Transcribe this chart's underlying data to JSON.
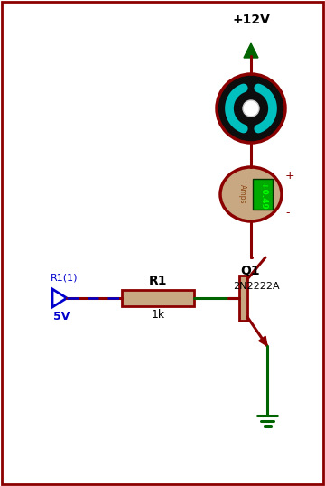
{
  "bg_color": "#ffffff",
  "border_color": "#8B0000",
  "wire_color_dark": "#8B0000",
  "wire_color_green": "#006400",
  "wire_color_blue": "#0000CD",
  "vcc_label": "+12V",
  "r1_label": "R1",
  "r1_value": "1k",
  "q1_label": "Q1",
  "q1_value": "2N2222A",
  "source_label": "R1(1)",
  "source_voltage": "5V",
  "meter_value": "+0.49",
  "meter_unit": "Amps",
  "meter_plus": "+",
  "meter_minus": "-",
  "motor_fill": "#0d0d0d",
  "motor_edge": "#8B0000",
  "cyan_color": "#00BFBF",
  "motor_hub_fill": "#ffffff",
  "meter_fill": "#c8a882",
  "meter_edge": "#8B0000",
  "lcd_fill": "#00AA00",
  "lcd_text": "#00FF00",
  "amps_text": "#8B4513",
  "res_fill": "#c8a882",
  "res_edge": "#8B0000"
}
